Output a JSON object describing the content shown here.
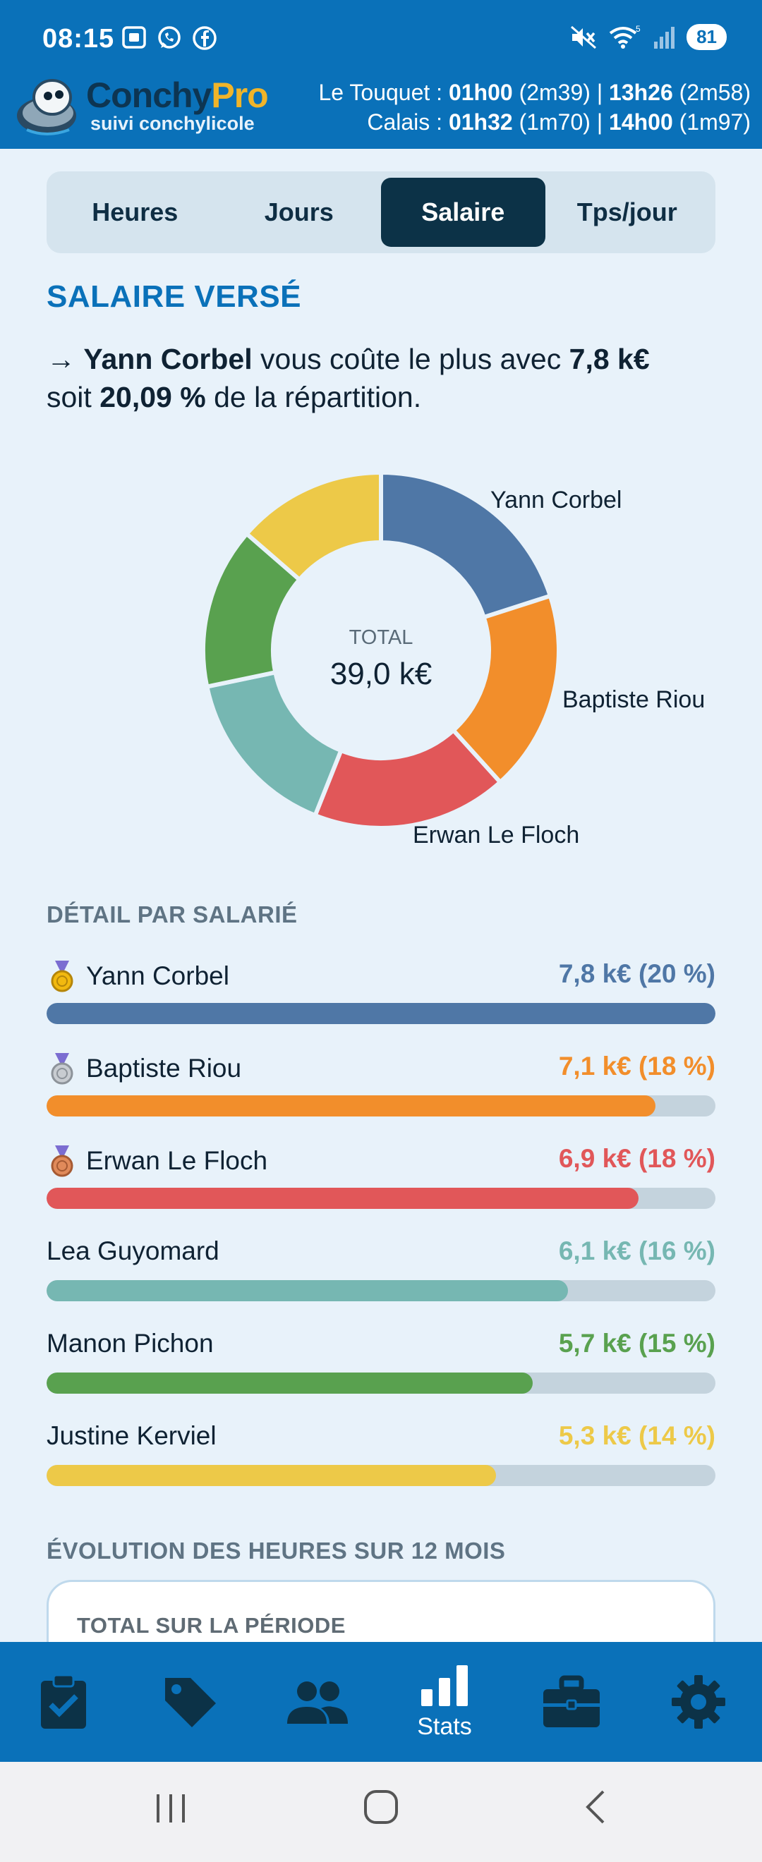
{
  "status": {
    "time": "08:15",
    "battery": "81",
    "icons_left": [
      "screenshot-icon",
      "whatsapp-icon",
      "facebook-icon"
    ],
    "icons_right": [
      "mute-icon",
      "wifi-icon",
      "signal-icon"
    ]
  },
  "brand": {
    "name_part1": "Conchy",
    "name_part2": "Pro",
    "tagline": "suivi conchylicole"
  },
  "tides": [
    {
      "place": "Le Touquet :",
      "t1": "01h00",
      "h1": "(2m39)",
      "sep": "|",
      "t2": "13h26",
      "h2": "(2m58)"
    },
    {
      "place": "Calais :",
      "t1": "01h32",
      "h1": "(1m70)",
      "sep": "|",
      "t2": "14h00",
      "h2": "(1m97)"
    }
  ],
  "tabs": [
    {
      "label": "Heures",
      "active": false
    },
    {
      "label": "Jours",
      "active": false
    },
    {
      "label": "Salaire",
      "active": true
    },
    {
      "label": "Tps/jour",
      "active": false
    }
  ],
  "section_title": "SALAIRE VERSÉ",
  "summary": {
    "arrow": "→",
    "name": "Yann Corbel",
    "text1": "vous coûte le plus avec",
    "amount": "7,8 k€",
    "text2": "soit",
    "percent": "20,09 %",
    "text3": "de la répartition."
  },
  "chart_data": {
    "type": "pie",
    "donut": true,
    "center_label": "TOTAL",
    "center_value": "39,0 k€",
    "categories": [
      "Yann Corbel",
      "Baptiste Riou",
      "Erwan Le Floch",
      "Lea Guyomard",
      "Manon Pichon",
      "Justine Kerviel"
    ],
    "values": [
      7.8,
      7.1,
      6.9,
      6.1,
      5.7,
      5.3
    ],
    "labels_shown": [
      "Yann Corbel",
      "Baptiste Riou",
      "Erwan Le Floch"
    ],
    "colors": [
      "#4f77a6",
      "#f28e2b",
      "#e15759",
      "#76b7b2",
      "#59a14f",
      "#edc948"
    ]
  },
  "detail_title": "DÉTAIL PAR SALARIÉ",
  "employees": [
    {
      "name": "Yann Corbel",
      "value": "7,8 k€ (20 %)",
      "fraction": 1.0,
      "color": "#4f77a6",
      "medal": "gold-medal-icon"
    },
    {
      "name": "Baptiste Riou",
      "value": "7,1 k€ (18 %)",
      "fraction": 0.91,
      "color": "#f28e2b",
      "medal": "silver-medal-icon"
    },
    {
      "name": "Erwan Le Floch",
      "value": "6,9 k€ (18 %)",
      "fraction": 0.885,
      "color": "#e15759",
      "medal": "bronze-medal-icon"
    },
    {
      "name": "Lea Guyomard",
      "value": "6,1 k€ (16 %)",
      "fraction": 0.78,
      "color": "#76b7b2",
      "medal": null
    },
    {
      "name": "Manon Pichon",
      "value": "5,7 k€ (15 %)",
      "fraction": 0.727,
      "color": "#59a14f",
      "medal": null
    },
    {
      "name": "Justine Kerviel",
      "value": "5,3 k€ (14 %)",
      "fraction": 0.672,
      "color": "#edc948",
      "medal": null
    }
  ],
  "evolution_title": "ÉVOLUTION DES HEURES SUR 12 MOIS",
  "evolution_card_title": "TOTAL SUR LA PÉRIODE",
  "bottom_nav": [
    {
      "icon": "clipboard-check-icon",
      "label": ""
    },
    {
      "icon": "tag-icon",
      "label": ""
    },
    {
      "icon": "people-icon",
      "label": ""
    },
    {
      "icon": "bar-chart-icon",
      "label": "Stats",
      "active": true
    },
    {
      "icon": "briefcase-icon",
      "label": ""
    },
    {
      "icon": "gear-icon",
      "label": ""
    }
  ],
  "system_nav": [
    "recents-icon",
    "home-icon",
    "back-icon"
  ]
}
